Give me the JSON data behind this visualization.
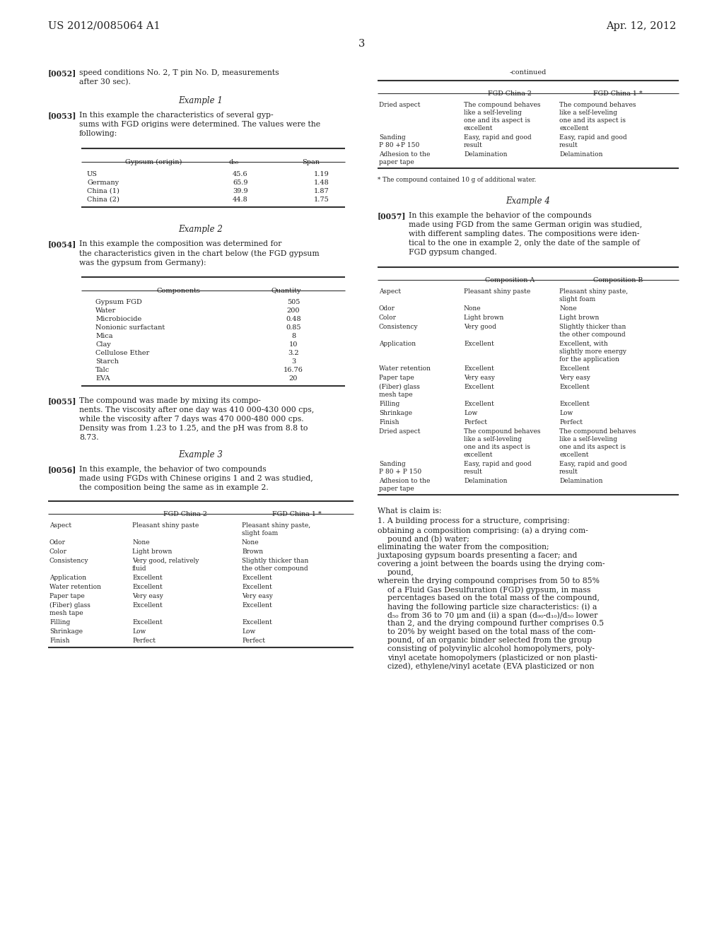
{
  "bg_color": "#ffffff",
  "text_color": "#222222",
  "header_left": "US 2012/0085064 A1",
  "header_right": "Apr. 12, 2012",
  "page_number": "3"
}
